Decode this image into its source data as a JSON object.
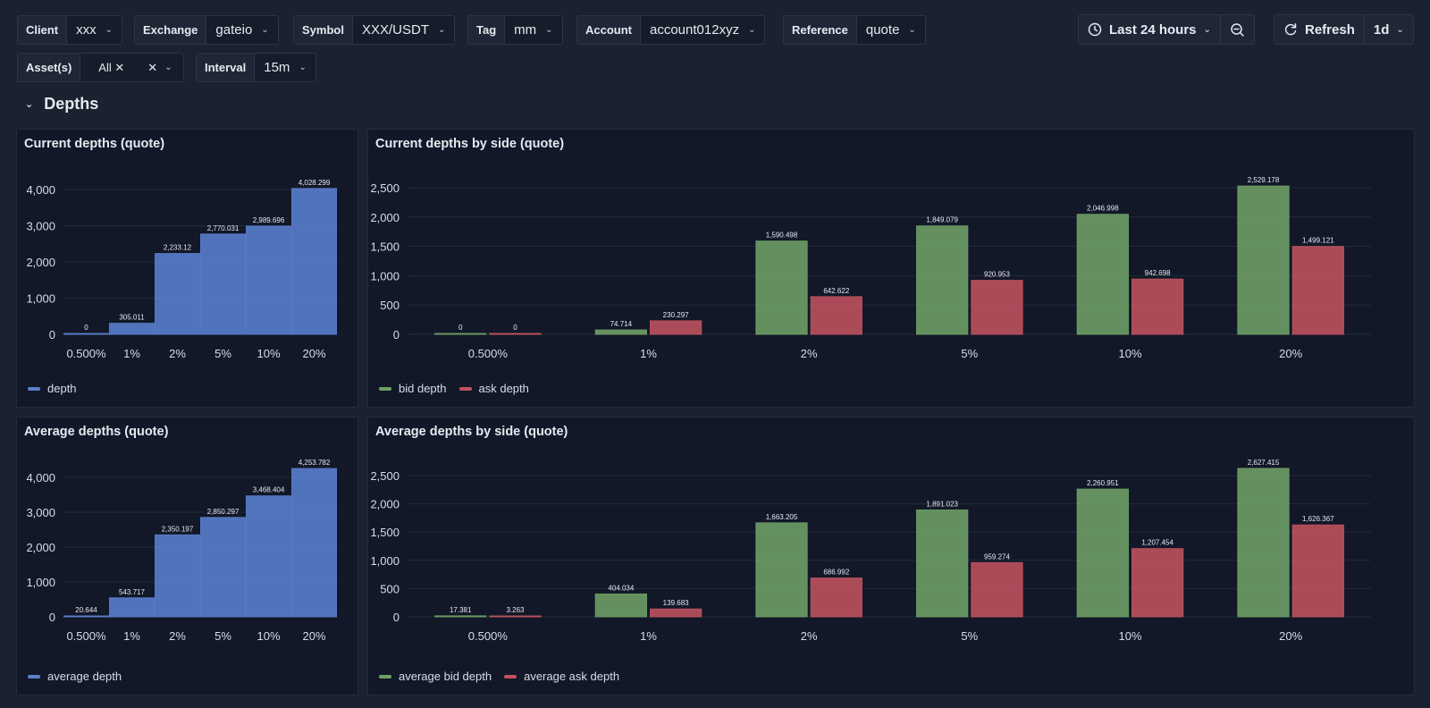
{
  "filters": {
    "client": {
      "label": "Client",
      "value": "xxx"
    },
    "exchange": {
      "label": "Exchange",
      "value": "gateio"
    },
    "symbol": {
      "label": "Symbol",
      "value": "XXX/USDT"
    },
    "tag": {
      "label": "Tag",
      "value": "mm"
    },
    "account": {
      "label": "Account",
      "value": "account012xyz"
    },
    "reference": {
      "label": "Reference",
      "value": "quote"
    },
    "assets": {
      "label": "Asset(s)",
      "value": "All"
    },
    "interval": {
      "label": "Interval",
      "value": "15m"
    }
  },
  "timepicker": {
    "range": "Last 24 hours",
    "refresh": "Refresh",
    "refresh_interval": "1d"
  },
  "row": {
    "title": "Depths"
  },
  "colors": {
    "blue": "#5a7fd0",
    "green": "#6ea065",
    "red": "#c0525e"
  },
  "icons": [
    "clock-icon",
    "zoom-out-icon",
    "refresh-icon",
    "chevron-down-icon",
    "close-icon"
  ],
  "chart_data": [
    {
      "id": "current-depths",
      "type": "bar",
      "title": "Current depths (quote)",
      "categories": [
        "0.500%",
        "1%",
        "2%",
        "5%",
        "10%",
        "20%"
      ],
      "series": [
        {
          "name": "depth",
          "values": [
            0,
            305.011,
            2233.12,
            2770.031,
            2989.696,
            4028.299
          ],
          "labels": [
            "0",
            "305.011",
            "2,233.12",
            "2,770.031",
            "2,989.696",
            "4,028.299"
          ]
        }
      ],
      "yticks": [
        "0",
        "1,000",
        "2,000",
        "3,000",
        "4,000"
      ],
      "ylim": [
        0,
        4000
      ],
      "grid": true,
      "legend": "bottom-left"
    },
    {
      "id": "current-depths-by-side",
      "type": "bar",
      "title": "Current depths by side (quote)",
      "categories": [
        "0.500%",
        "1%",
        "2%",
        "5%",
        "10%",
        "20%"
      ],
      "series": [
        {
          "name": "bid depth",
          "values": [
            0,
            74.714,
            1590.498,
            1849.079,
            2046.998,
            2529.178
          ],
          "labels": [
            "0",
            "74.714",
            "1,590.498",
            "1,849.079",
            "2,046.998",
            "2,529.178"
          ]
        },
        {
          "name": "ask depth",
          "values": [
            0,
            230.297,
            642.622,
            920.953,
            942.698,
            1499.121
          ],
          "labels": [
            "0",
            "230.297",
            "642.622",
            "920.953",
            "942.698",
            "1,499.121"
          ]
        }
      ],
      "yticks": [
        "0",
        "500",
        "1,000",
        "1,500",
        "2,000",
        "2,500"
      ],
      "ylim": [
        0,
        2500
      ],
      "grid": true,
      "legend": "bottom-left"
    },
    {
      "id": "average-depths",
      "type": "bar",
      "title": "Average depths (quote)",
      "categories": [
        "0.500%",
        "1%",
        "2%",
        "5%",
        "10%",
        "20%"
      ],
      "series": [
        {
          "name": "average depth",
          "values": [
            20.644,
            543.717,
            2350.197,
            2850.297,
            3468.404,
            4253.782
          ],
          "labels": [
            "20.644",
            "543.717",
            "2,350.197",
            "2,850.297",
            "3,468.404",
            "4,253.782"
          ]
        }
      ],
      "yticks": [
        "0",
        "1,000",
        "2,000",
        "3,000",
        "4,000"
      ],
      "ylim": [
        0,
        4000
      ],
      "grid": true,
      "legend": "bottom-left"
    },
    {
      "id": "average-depths-by-side",
      "type": "bar",
      "title": "Average depths by side (quote)",
      "categories": [
        "0.500%",
        "1%",
        "2%",
        "5%",
        "10%",
        "20%"
      ],
      "series": [
        {
          "name": "average bid depth",
          "values": [
            17.381,
            404.034,
            1663.205,
            1891.023,
            2260.951,
            2627.415
          ],
          "labels": [
            "17.381",
            "404.034",
            "1,663.205",
            "1,891.023",
            "2,260.951",
            "2,627.415"
          ]
        },
        {
          "name": "average ask depth",
          "values": [
            3.263,
            139.683,
            686.992,
            959.274,
            1207.454,
            1626.367
          ],
          "labels": [
            "3.263",
            "139.683",
            "686.992",
            "959.274",
            "1,207.454",
            "1,626.367"
          ]
        }
      ],
      "yticks": [
        "0",
        "500",
        "1,000",
        "1,500",
        "2,000",
        "2,500"
      ],
      "ylim": [
        0,
        2500
      ],
      "grid": true,
      "legend": "bottom-left"
    }
  ]
}
